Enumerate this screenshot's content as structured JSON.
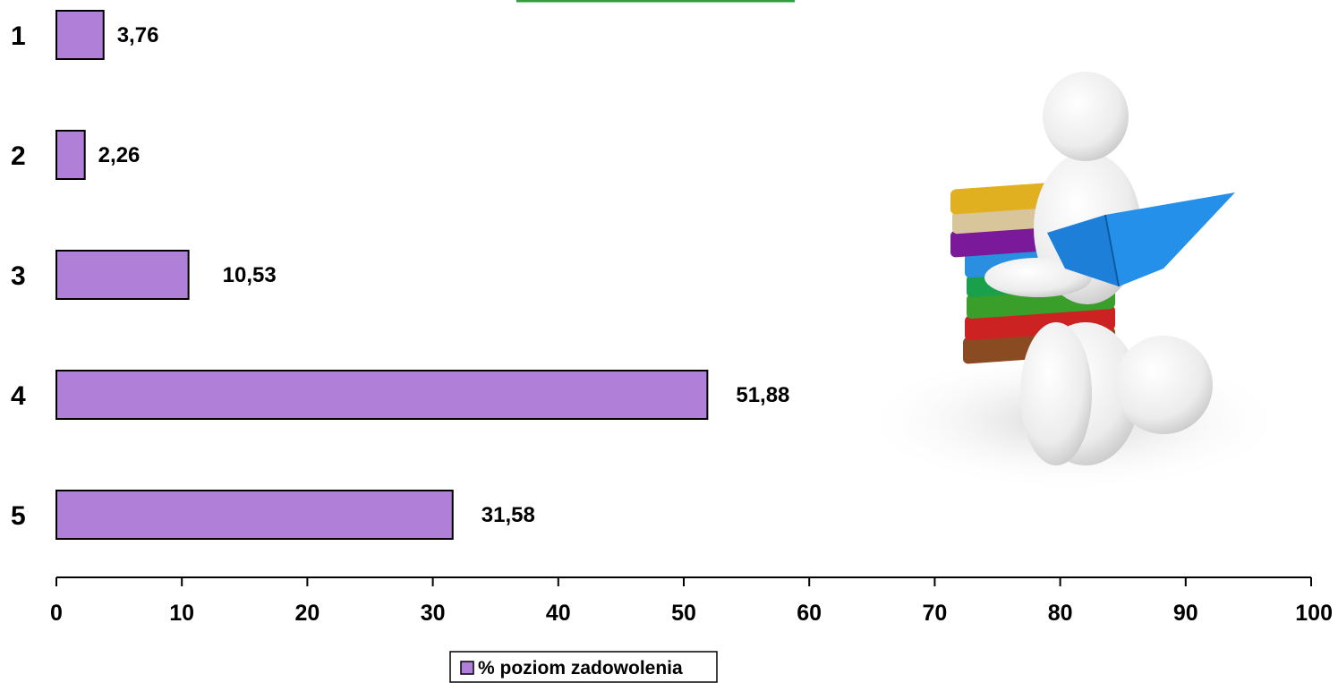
{
  "chart_data": {
    "type": "bar",
    "orientation": "horizontal",
    "categories": [
      "1",
      "2",
      "3",
      "4",
      "5"
    ],
    "value_labels": [
      "3,76",
      "2,26",
      "10,53",
      "51,88",
      "31,58"
    ],
    "series": [
      {
        "name": "% poziom zadowolenia",
        "values": [
          3.76,
          2.26,
          10.53,
          51.88,
          31.58
        ]
      }
    ],
    "xlim": [
      0,
      100
    ],
    "xticks": [
      "0",
      "10",
      "20",
      "30",
      "40",
      "50",
      "60",
      "70",
      "80",
      "90",
      "100"
    ],
    "grid": false,
    "legend_position": "bottom",
    "colors": {
      "bar": "#b07fd8",
      "bar_stroke": "#000000",
      "axis": "#000000",
      "accent_line": "#2e9e3e"
    },
    "illustration": "person-reading-book-on-book-stack"
  }
}
